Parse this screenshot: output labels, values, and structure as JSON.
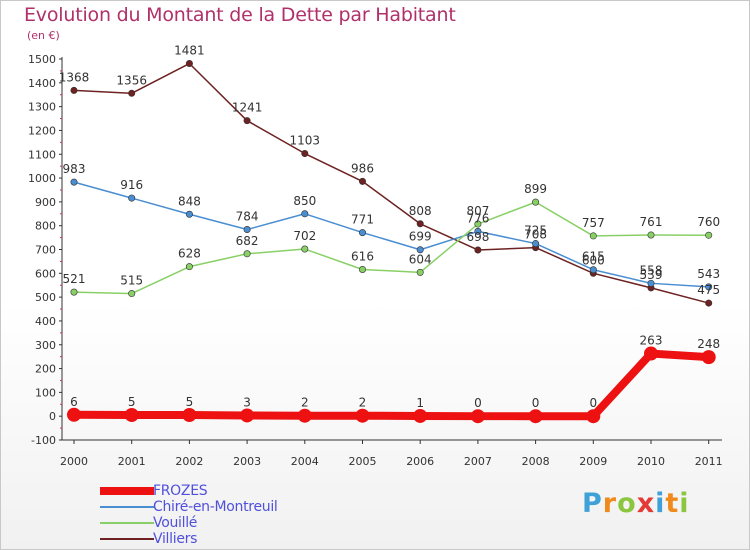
{
  "header": {
    "title": "Evolution du Montant de la Dette par Habitant",
    "unit": "(en €)"
  },
  "brand": {
    "text": "Proxiti",
    "letter_colors": [
      "#3fa1d8",
      "#f08a1c",
      "#8cc63f",
      "#e53935",
      "#3fa1d8",
      "#f08a1c",
      "#8cc63f"
    ]
  },
  "chart_data": {
    "type": "line",
    "title": "Evolution du Montant de la Dette par Habitant",
    "ylabel": "(en €)",
    "xlabel": "",
    "x": [
      "2000",
      "2001",
      "2002",
      "2003",
      "2004",
      "2005",
      "2006",
      "2007",
      "2008",
      "2009",
      "2010",
      "2011"
    ],
    "ylim": [
      -100,
      1500
    ],
    "yticks": [
      -100,
      0,
      100,
      200,
      300,
      400,
      500,
      600,
      700,
      800,
      900,
      1000,
      1100,
      1200,
      1300,
      1400,
      1500
    ],
    "grid": false,
    "legend_position": "bottom-left",
    "series": [
      {
        "name": "FROZES",
        "color": "#ee1111",
        "values": [
          6,
          5,
          5,
          3,
          2,
          2,
          1,
          0,
          0,
          0,
          263,
          248
        ],
        "labels": [
          "6",
          "5",
          "5",
          "3",
          "2",
          "2",
          "1",
          "0",
          "0",
          "0",
          "263",
          "248"
        ]
      },
      {
        "name": "Chiré-en-Montreuil",
        "color": "#4a8ed1",
        "values": [
          983,
          916,
          848,
          784,
          850,
          771,
          699,
          776,
          725,
          615,
          558,
          543
        ],
        "labels": [
          "983",
          "916",
          "848",
          "784",
          "850",
          "771",
          "699",
          "776",
          "725",
          "615",
          "558",
          "543"
        ]
      },
      {
        "name": "Vouillé",
        "color": "#88d066",
        "values": [
          521,
          515,
          628,
          682,
          702,
          616,
          604,
          807,
          899,
          757,
          761,
          760
        ],
        "labels": [
          "521",
          "515",
          "628",
          "682",
          "702",
          "616",
          "604",
          "807",
          "899",
          "757",
          "761",
          "760"
        ]
      },
      {
        "name": "Villiers",
        "color": "#6e2222",
        "values": [
          1368,
          1356,
          1481,
          1241,
          1103,
          986,
          808,
          698,
          708,
          600,
          539,
          475
        ],
        "labels": [
          "1368",
          "1356",
          "1481",
          "1241",
          "1103",
          "986",
          "808",
          "698",
          "708",
          "600",
          "539",
          "475"
        ]
      }
    ]
  }
}
